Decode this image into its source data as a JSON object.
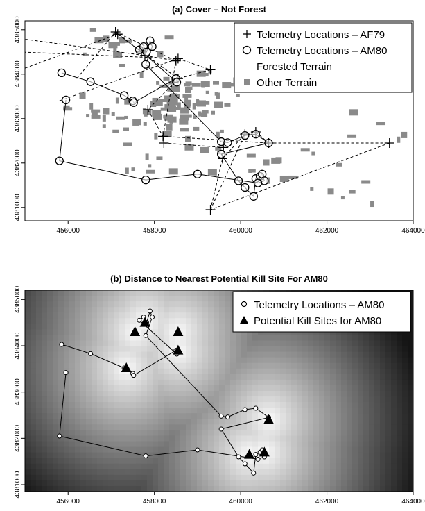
{
  "chart_data": [
    {
      "type": "scatter",
      "title": "(a) Cover – Not Forest",
      "xlabel": "",
      "ylabel": "",
      "xlim": [
        455000,
        464000
      ],
      "ylim": [
        4380700,
        4385200
      ],
      "x_ticks": [
        "456000",
        "458000",
        "460000",
        "462000",
        "464000"
      ],
      "y_ticks": [
        "4381000",
        "4382000",
        "4383000",
        "4384000",
        "4385000"
      ],
      "legend": {
        "placement": "top-right",
        "entries": [
          "Telemetry Locations – AF79",
          "Telemetry Locations – AM80",
          "Forested Terrain",
          "Other Terrain"
        ]
      },
      "series": [
        {
          "name": "Telemetry Locations – AF79",
          "marker": "plus",
          "line": "dashed",
          "points": [
            [
              457100,
              4384950
            ],
            [
              457150,
              4384900
            ],
            [
              457700,
              4384500
            ],
            [
              457780,
              4384420
            ],
            [
              458500,
              4384300
            ],
            [
              458550,
              4384350
            ],
            [
              459300,
              4384100
            ],
            [
              458550,
              4383900
            ],
            [
              457850,
              4383200
            ],
            [
              458200,
              4382600
            ],
            [
              458220,
              4382450
            ],
            [
              459600,
              4382350
            ],
            [
              459580,
              4382100
            ],
            [
              460100,
              4382650
            ],
            [
              460350,
              4382700
            ],
            [
              460650,
              4382450
            ],
            [
              463450,
              4382450
            ],
            [
              459300,
              4380950
            ]
          ],
          "edge_points": [
            [
              454900,
              4384800
            ],
            [
              454850,
              4384500
            ],
            [
              454900,
              4384100
            ],
            [
              456200,
              4383900
            ],
            [
              455800,
              4383400
            ]
          ]
        },
        {
          "name": "Telemetry Locations – AM80",
          "marker": "circle",
          "line": "solid",
          "points": [
            [
              455850,
              4384030
            ],
            [
              456520,
              4383830
            ],
            [
              457300,
              4383520
            ],
            [
              457500,
              4383400
            ],
            [
              457520,
              4383360
            ],
            [
              458500,
              4383900
            ],
            [
              458520,
              4383820
            ],
            [
              457650,
              4384550
            ],
            [
              457750,
              4384620
            ],
            [
              457820,
              4384500
            ],
            [
              457900,
              4384750
            ],
            [
              457950,
              4384620
            ],
            [
              457800,
              4384220
            ],
            [
              459550,
              4382480
            ],
            [
              459700,
              4382460
            ],
            [
              460100,
              4382620
            ],
            [
              460350,
              4382650
            ],
            [
              460650,
              4382450
            ],
            [
              459550,
              4382200
            ],
            [
              459950,
              4381600
            ],
            [
              460100,
              4381450
            ],
            [
              460300,
              4381250
            ],
            [
              460350,
              4381650
            ],
            [
              460450,
              4381700
            ],
            [
              460500,
              4381750
            ],
            [
              460550,
              4381600
            ],
            [
              460400,
              4381550
            ],
            [
              459000,
              4381750
            ],
            [
              457800,
              4381620
            ],
            [
              455800,
              4382050
            ],
            [
              455950,
              4383420
            ]
          ]
        }
      ]
    },
    {
      "type": "heatmap",
      "title": "(b) Distance to Nearest Potential Kill Site For AM80",
      "xlabel": "",
      "ylabel": "",
      "xlim": [
        455000,
        464000
      ],
      "ylim": [
        4380850,
        4385200
      ],
      "x_ticks": [
        "456000",
        "458000",
        "460000",
        "462000",
        "464000"
      ],
      "y_ticks": [
        "4381000",
        "4382000",
        "4383000",
        "4384000",
        "4385000"
      ],
      "legend": {
        "placement": "top-right",
        "entries": [
          "Telemetry Locations – AM80",
          "Potential Kill Sites for AM80"
        ]
      },
      "color_scale": "white near kill sites, darker grey with increasing distance",
      "series": [
        {
          "name": "Telemetry Locations – AM80",
          "marker": "circle",
          "line": "solid",
          "points": [
            [
              455850,
              4384030
            ],
            [
              456520,
              4383830
            ],
            [
              457300,
              4383520
            ],
            [
              457500,
              4383400
            ],
            [
              457520,
              4383360
            ],
            [
              458500,
              4383900
            ],
            [
              458520,
              4383820
            ],
            [
              457650,
              4384550
            ],
            [
              457750,
              4384620
            ],
            [
              457820,
              4384500
            ],
            [
              457900,
              4384750
            ],
            [
              457950,
              4384620
            ],
            [
              457800,
              4384220
            ],
            [
              459550,
              4382480
            ],
            [
              459700,
              4382460
            ],
            [
              460100,
              4382620
            ],
            [
              460350,
              4382650
            ],
            [
              460650,
              4382450
            ],
            [
              459550,
              4382200
            ],
            [
              459950,
              4381600
            ],
            [
              460100,
              4381450
            ],
            [
              460300,
              4381250
            ],
            [
              460350,
              4381650
            ],
            [
              460450,
              4381700
            ],
            [
              460500,
              4381750
            ],
            [
              460550,
              4381600
            ],
            [
              460400,
              4381550
            ],
            [
              459000,
              4381750
            ],
            [
              457800,
              4381620
            ],
            [
              455800,
              4382050
            ],
            [
              455950,
              4383420
            ]
          ]
        },
        {
          "name": "Potential Kill Sites for AM80",
          "marker": "triangle",
          "points": [
            [
              457550,
              4384300
            ],
            [
              457780,
              4384500
            ],
            [
              458550,
              4384300
            ],
            [
              457350,
              4383520
            ],
            [
              458550,
              4383900
            ],
            [
              460650,
              4382400
            ],
            [
              460200,
              4381650
            ],
            [
              460550,
              4381700
            ]
          ]
        }
      ]
    }
  ]
}
